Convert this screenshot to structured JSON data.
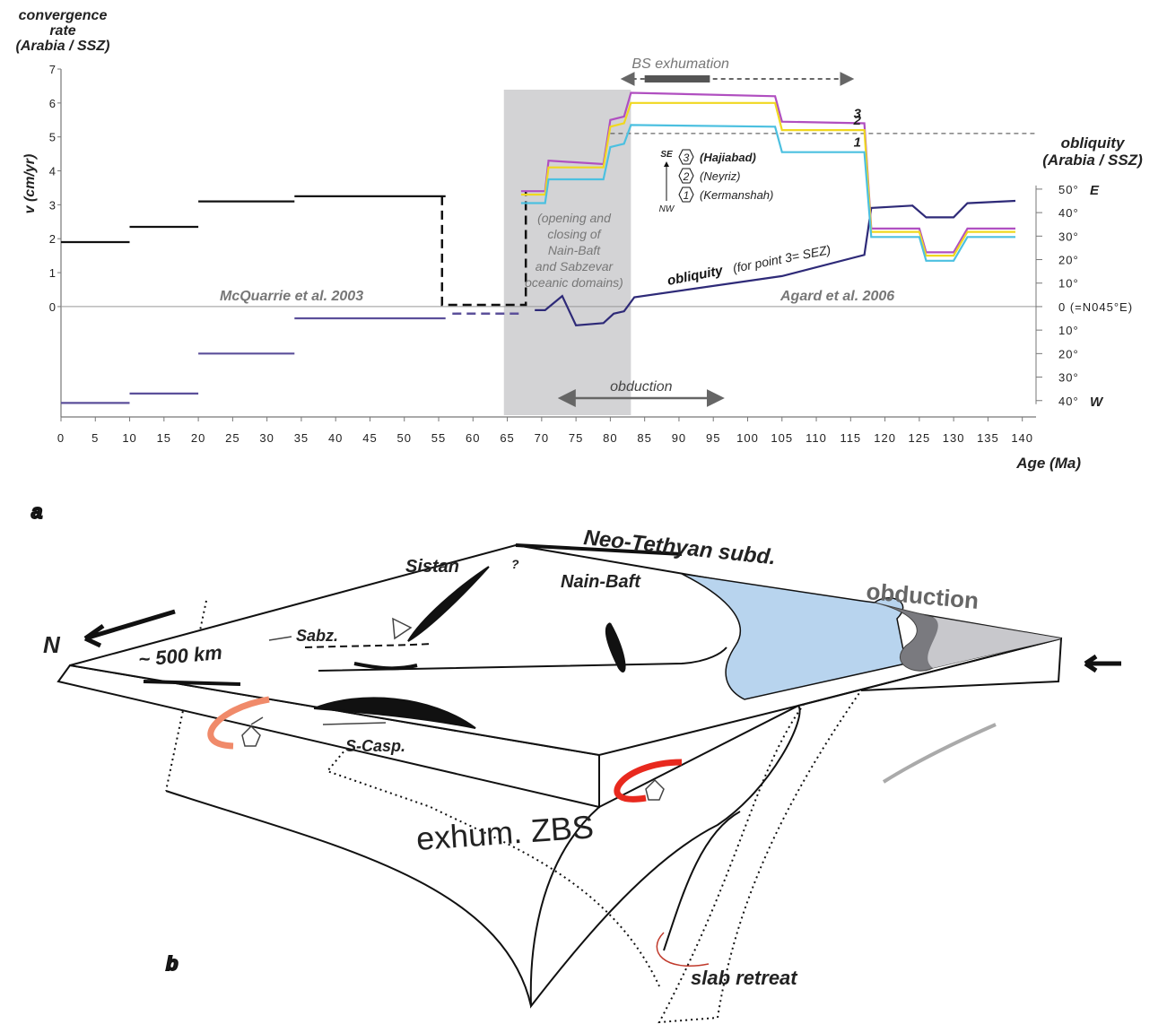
{
  "chart_data": {
    "type": "line",
    "ytitle": [
      "convergence",
      "rate",
      "(Arabia / SSZ)"
    ],
    "ylabel": "v (cm/yr)",
    "y2title": [
      "obliquity",
      "(Arabia / SSZ)"
    ],
    "y2label_east": "E",
    "y2label_west": "W",
    "xlabel": "Age (Ma)",
    "xlim": [
      0,
      142
    ],
    "ylim": [
      -3.2,
      7
    ],
    "y2lim": [
      -46.2,
      101.1
    ],
    "xticks": [
      0,
      5,
      10,
      15,
      20,
      25,
      30,
      35,
      40,
      45,
      50,
      55,
      60,
      65,
      70,
      75,
      80,
      85,
      90,
      95,
      100,
      105,
      110,
      115,
      120,
      125,
      130,
      135,
      140
    ],
    "yticks": [
      0,
      1,
      2,
      3,
      4,
      5,
      6,
      7
    ],
    "y2ticks": [
      {
        "value": 50,
        "label": "50°"
      },
      {
        "value": 40,
        "label": "40°"
      },
      {
        "value": 30,
        "label": "30°"
      },
      {
        "value": 20,
        "label": "20°"
      },
      {
        "value": 10,
        "label": "10°"
      },
      {
        "value": 0,
        "label": "0 (=N045°E)"
      },
      {
        "value": -10,
        "label": "10°"
      },
      {
        "value": -20,
        "label": "20°"
      },
      {
        "value": -30,
        "label": "30°"
      },
      {
        "value": -40,
        "label": "40°"
      }
    ],
    "shaded_span": [
      64.5,
      83
    ],
    "reference_line": {
      "value": 5.1,
      "x": [
        80,
        142
      ]
    },
    "series": [
      {
        "color": "#111111",
        "x": [
          0,
          10,
          10,
          10,
          20,
          20,
          20,
          34,
          34,
          34,
          56
        ],
        "values": [
          1.9,
          1.9,
          null,
          2.35,
          2.35,
          null,
          3.1,
          3.1,
          null,
          3.25,
          3.25
        ]
      },
      {
        "color": "#111111",
        "dashed": true,
        "x": [
          55.5,
          55.5,
          67.7,
          67.7
        ],
        "values": [
          3.25,
          0.05,
          0.05,
          3.4
        ]
      },
      {
        "color": "#5b4f9a",
        "axis": "y2",
        "x": [
          0,
          10,
          10,
          10,
          20,
          20,
          20,
          34,
          34,
          34,
          56
        ],
        "values": [
          -41,
          -41,
          null,
          -37,
          -37,
          null,
          -20,
          -20,
          null,
          -5,
          -5
        ]
      },
      {
        "color": "#5b4f9a",
        "axis": "y2",
        "dashed": true,
        "x": [
          57,
          67
        ],
        "values": [
          -3,
          -3
        ]
      },
      {
        "color": "#2e2a78",
        "axis": "y2",
        "x": [
          69,
          70.5,
          73,
          75,
          79,
          80.5,
          82,
          83.5,
          105,
          117,
          118,
          124,
          126,
          130,
          132,
          139
        ],
        "values": [
          -1.5,
          -1.5,
          4.5,
          -8,
          -7,
          -3,
          -2,
          4,
          13,
          22,
          42,
          43,
          38,
          38,
          44,
          45
        ]
      },
      {
        "name": "3",
        "color": "#b04fc0",
        "x": [
          67,
          70.5,
          71,
          79,
          80,
          82,
          83,
          104,
          105,
          117,
          118,
          125,
          126,
          130,
          132,
          139
        ],
        "values": [
          3.4,
          3.4,
          4.3,
          4.2,
          5.5,
          5.6,
          6.3,
          6.2,
          5.45,
          5.4,
          2.3,
          2.3,
          1.6,
          1.6,
          2.3,
          2.3
        ]
      },
      {
        "name": "2",
        "color": "#f0d820",
        "x": [
          67,
          70.5,
          71,
          79,
          80,
          82,
          83,
          104,
          105,
          117,
          118,
          125,
          126,
          130,
          132,
          139
        ],
        "values": [
          3.3,
          3.3,
          4.1,
          4.1,
          5.3,
          5.4,
          6.0,
          6.0,
          5.2,
          5.2,
          2.2,
          2.2,
          1.5,
          1.5,
          2.2,
          2.2
        ]
      },
      {
        "name": "1",
        "color": "#4cc0e0",
        "x": [
          67,
          70.5,
          71,
          79,
          80,
          82,
          83,
          104,
          105,
          117,
          118,
          125,
          126,
          130,
          132,
          139
        ],
        "values": [
          3.05,
          3.05,
          3.75,
          3.75,
          4.7,
          4.8,
          5.35,
          5.3,
          4.55,
          4.55,
          2.05,
          2.05,
          1.35,
          1.35,
          2.05,
          2.05
        ]
      }
    ],
    "annotations": {
      "mcquarrie": "McQuarrie et al. 2003",
      "agard": "Agard et al. 2006",
      "opening": [
        "(opening and",
        "closing of",
        "Nain-Baft",
        "and Sabzevar",
        "oceanic domains)"
      ],
      "obliquity": "obliquity",
      "obliquity_note": "(for point 3= SEZ)",
      "bs_exhumation": {
        "text": "BS exhumation",
        "x": [
          82,
          115
        ],
        "bar": [
          85,
          94.5
        ]
      },
      "obduction": {
        "text": "obduction",
        "x": [
          73,
          96
        ]
      },
      "direction": [
        "SE",
        "NW"
      ],
      "points": [
        {
          "number": "3",
          "label": "(Hajiabad)"
        },
        {
          "number": "2",
          "label": "(Neyriz)"
        },
        {
          "number": "1",
          "label": "(Kermanshah)"
        }
      ]
    }
  },
  "diagram": {
    "panel_labels": [
      "a",
      "b"
    ],
    "neo_tethyan": "Neo-Tethyan subd.",
    "nain_baft": "Nain-Baft",
    "sistan": "Sistan",
    "sabz": "Sabz.",
    "s_casp": "S-Casp.",
    "scale": "~ 500 km",
    "north": "N",
    "question": "?",
    "obduction": "obduction",
    "exhum": "exhum. ZBS",
    "slab_retreat": "slab retreat"
  }
}
